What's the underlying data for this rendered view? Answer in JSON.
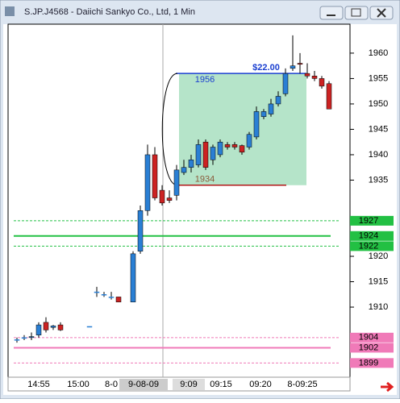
{
  "window": {
    "title": "S.JP.J4568 - Daiichi Sankyo Co., Ltd, 1 Min"
  },
  "chart_data": {
    "type": "candlestick",
    "open": [
      1903.6,
      1904,
      1904,
      1904.5,
      1907,
      1906,
      1906.5,
      null,
      null,
      null,
      1906.2,
      1913,
      1912.5,
      1912,
      1912,
      null,
      1911,
      1921,
      1929,
      1940,
      1933,
      1931.5,
      1932,
      1936.5,
      1937.5,
      1938,
      1942.5,
      1939,
      1940,
      1942,
      1942,
      1941.8,
      1941.5,
      1943.5,
      1947.5,
      1948,
      1950,
      1952,
      1957,
      1958,
      1956,
      1955.5,
      1955,
      1954
    ],
    "high": [
      1904,
      1904.5,
      1905,
      1907,
      1908,
      1906.5,
      1907,
      null,
      null,
      null,
      1906.2,
      1914,
      1913,
      1913,
      1912,
      null,
      1921,
      1930,
      1942,
      1941.5,
      1934,
      1933,
      1938,
      1939,
      1940,
      1943,
      1943,
      1942,
      1943,
      1942.5,
      1942.5,
      1942,
      1944.5,
      1949.5,
      1949,
      1951,
      1952.5,
      1957,
      1963.5,
      1960,
      1958,
      1956.5,
      1955.5,
      1954.5
    ],
    "low": [
      1903,
      1903.5,
      1903.5,
      1904,
      1905,
      1905.5,
      1905.3,
      null,
      null,
      null,
      1906.2,
      1912,
      1912,
      1911.5,
      1911,
      null,
      1911,
      1920.5,
      1928,
      1931,
      1930,
      1930.5,
      1931,
      1936,
      1936.5,
      1937.5,
      1937,
      1938,
      1939.5,
      1941,
      1941,
      1940,
      1941,
      1943,
      1947,
      1947.5,
      1949.5,
      1951.5,
      1956.5,
      1956,
      1955,
      1954.5,
      1953,
      1949
    ],
    "close": [
      1903.6,
      1904,
      1904.2,
      1906.5,
      1905.5,
      1906.3,
      1905.5,
      null,
      null,
      null,
      1906.2,
      1913,
      1912.5,
      1912,
      1911,
      null,
      1920.5,
      1929,
      1940,
      1931.5,
      1930.5,
      1931,
      1937,
      1937.5,
      1939,
      1942,
      1937.5,
      1941.5,
      1942.5,
      1941.5,
      1941.5,
      1940.5,
      1944,
      1948.5,
      1948.5,
      1950,
      1951.5,
      1956,
      1957.5,
      1957.8,
      1955.5,
      1955,
      1953.5,
      1949
    ],
    "up_color": "#2a7fd4",
    "down_color": "#cc2222",
    "ylim": [
      1896.2,
      1965.7
    ],
    "yticks": [
      1910,
      1915,
      1920,
      1935,
      1940,
      1945,
      1950,
      1955,
      1960
    ],
    "x_labels": [
      "14:55",
      "15:00",
      "8-0",
      "9-08-09",
      "9:09",
      "09:15",
      "09:20",
      "8-09:25"
    ],
    "levels": [
      {
        "value": 1927,
        "color": "#22c043",
        "style": "dashed"
      },
      {
        "value": 1924,
        "color": "#22c043",
        "style": "solid"
      },
      {
        "value": 1922,
        "color": "#22c043",
        "style": "dashed"
      },
      {
        "value": 1904,
        "color": "#f07ab8",
        "style": "dashed"
      },
      {
        "value": 1902,
        "color": "#f07ab8",
        "style": "solid"
      },
      {
        "value": 1899,
        "color": "#f07ab8",
        "style": "dashed"
      }
    ],
    "range_annotation": {
      "label": "$22.00",
      "high": 1956,
      "low": 1934
    }
  }
}
